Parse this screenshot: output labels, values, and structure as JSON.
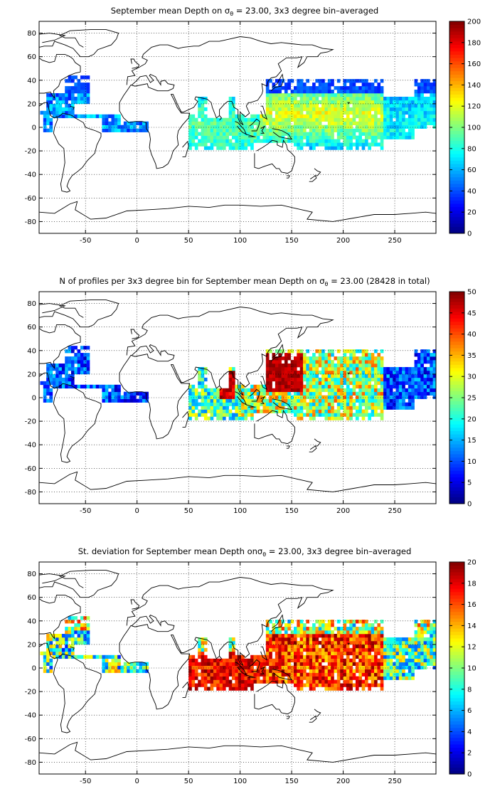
{
  "colors": {
    "ocean_background": "#ffffff",
    "coastline": "#000000",
    "grid": "#000000",
    "colormap": "jet"
  },
  "chart_data": [
    {
      "type": "heatmap",
      "title": "September mean Depth on σθ = 23.00, 3x3 degree bin–averaged",
      "title_parts": {
        "pre": "September mean Depth on ",
        "sigma": "σ",
        "sub": "θ",
        "post": " = 23.00, 3x3 degree bin–averaged"
      },
      "xlabel": "",
      "ylabel": "",
      "xlim": [
        -95,
        290
      ],
      "ylim": [
        -90,
        90
      ],
      "xticks": [
        -50,
        0,
        50,
        100,
        150,
        200,
        250
      ],
      "yticks": [
        80,
        60,
        40,
        20,
        0,
        -20,
        -40,
        -60,
        -80
      ],
      "grid": true,
      "grid_style": "dotted",
      "colorbar": {
        "min": 0,
        "max": 200,
        "ticks": [
          200,
          180,
          160,
          140,
          120,
          100,
          80,
          60,
          40,
          20,
          0
        ]
      },
      "bin_size_deg": 3,
      "field": "depth"
    },
    {
      "type": "heatmap",
      "title": "N of profiles per 3x3 degree bin for September mean Depth on σθ = 23.00 (28428 in total)",
      "title_parts": {
        "pre": "N of profiles per 3x3 degree bin for September mean Depth on ",
        "sigma": "σ",
        "sub": "θ",
        "post": " = 23.00 (28428 in total)"
      },
      "total_profiles": 28428,
      "xlabel": "",
      "ylabel": "",
      "xlim": [
        -95,
        290
      ],
      "ylim": [
        -90,
        90
      ],
      "xticks": [
        -50,
        0,
        50,
        100,
        150,
        200,
        250
      ],
      "yticks": [
        80,
        60,
        40,
        20,
        0,
        -20,
        -40,
        -60,
        -80
      ],
      "grid": true,
      "grid_style": "dotted",
      "colorbar": {
        "min": 0,
        "max": 50,
        "ticks": [
          50,
          45,
          40,
          35,
          30,
          25,
          20,
          15,
          10,
          5,
          0
        ]
      },
      "bin_size_deg": 3,
      "field": "count"
    },
    {
      "type": "heatmap",
      "title": "St. deviation for September mean Depth onσθ = 23.00, 3x3 degree bin–averaged",
      "title_parts": {
        "pre": "St. deviation for September mean Depth on",
        "sigma": "σ",
        "sub": "θ",
        "post": " = 23.00, 3x3 degree bin–averaged"
      },
      "xlabel": "",
      "ylabel": "",
      "xlim": [
        -95,
        290
      ],
      "ylim": [
        -90,
        90
      ],
      "xticks": [
        -50,
        0,
        50,
        100,
        150,
        200,
        250
      ],
      "yticks": [
        80,
        60,
        40,
        20,
        0,
        -20,
        -40,
        -60,
        -80
      ],
      "grid": true,
      "grid_style": "dotted",
      "colorbar": {
        "min": 0,
        "max": 20,
        "ticks": [
          20,
          18,
          16,
          14,
          12,
          10,
          8,
          6,
          4,
          2,
          0
        ]
      },
      "bin_size_deg": 3,
      "field": "std"
    }
  ]
}
